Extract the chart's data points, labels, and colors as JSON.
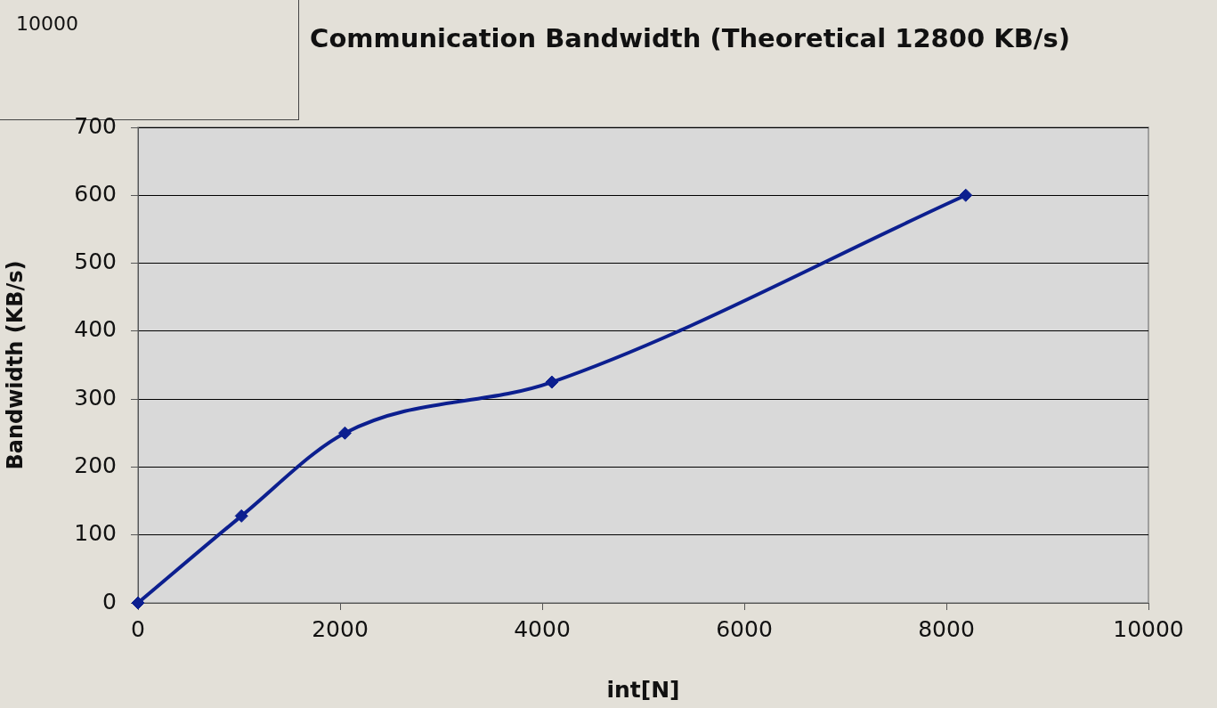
{
  "chart_data": {
    "type": "line",
    "title": "Communication Bandwidth (Theoretical 12800 KB/s)",
    "xlabel": "int[N]",
    "ylabel": "Bandwidth (KB/s)",
    "annotations": [
      "10000"
    ],
    "x": [
      0,
      1024,
      2048,
      4096,
      8192
    ],
    "series": [
      {
        "color": "#0c1f8f",
        "values": [
          0,
          128,
          250,
          325,
          600
        ]
      }
    ],
    "xlim": [
      0,
      10000
    ],
    "xticks": [
      0,
      2000,
      4000,
      6000,
      8000,
      10000
    ],
    "ylim": [
      0,
      700
    ],
    "yticks": [
      0,
      100,
      200,
      300,
      400,
      500,
      600,
      700
    ],
    "grid": "y",
    "legend": false,
    "marker": "diamond",
    "line_style": "solid"
  }
}
